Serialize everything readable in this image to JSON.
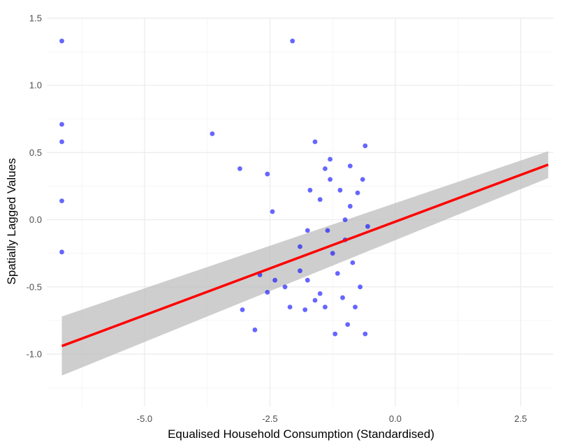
{
  "chart_data": {
    "type": "scatter",
    "title": "",
    "xlabel": "Equalised Household Consumption (Standardised)",
    "ylabel": "Spatially Lagged Values",
    "xlim": [
      -6.95,
      3.15
    ],
    "ylim": [
      -1.39,
      1.5
    ],
    "x_ticks": [
      -5.0,
      -2.5,
      0.0,
      2.5
    ],
    "x_tick_labels": [
      "-5.0",
      "-2.5",
      "0.0",
      "2.5"
    ],
    "y_ticks": [
      -1.0,
      -0.5,
      0.0,
      0.5,
      1.0,
      1.5
    ],
    "y_tick_labels": [
      "-1.0",
      "-0.5",
      "0.0",
      "0.5",
      "1.0",
      "1.5"
    ],
    "grid": true,
    "legend": "none",
    "colors": {
      "points": "#0000ff",
      "fit_line": "#ff0000",
      "confidence_band": "#bdbdbd",
      "grid_major": "#ebebeb",
      "grid_minor": "#f5f5f5",
      "tick_text": "#4d4d4d"
    },
    "fit_line": {
      "method": "linear",
      "x": [
        -6.65,
        3.05
      ],
      "y": [
        -0.94,
        0.41
      ],
      "ci_lower": [
        -1.16,
        0.31
      ],
      "ci_upper": [
        -0.72,
        0.51
      ]
    },
    "points": [
      [
        -6.65,
        1.33
      ],
      [
        -6.65,
        0.71
      ],
      [
        -6.65,
        0.58
      ],
      [
        -6.65,
        0.14
      ],
      [
        -6.65,
        -0.24
      ],
      [
        -3.65,
        0.64
      ],
      [
        -3.1,
        0.38
      ],
      [
        -3.05,
        -0.67
      ],
      [
        -2.8,
        -0.82
      ],
      [
        -2.7,
        -0.41
      ],
      [
        -2.55,
        0.34
      ],
      [
        -2.55,
        -0.54
      ],
      [
        -2.45,
        0.06
      ],
      [
        -2.4,
        -0.45
      ],
      [
        -2.2,
        -0.5
      ],
      [
        -2.1,
        -0.65
      ],
      [
        -2.05,
        1.33
      ],
      [
        -1.9,
        -0.2
      ],
      [
        -1.8,
        -0.67
      ],
      [
        -1.75,
        -0.45
      ],
      [
        -1.9,
        -0.38
      ],
      [
        -1.7,
        0.22
      ],
      [
        -1.75,
        -0.08
      ],
      [
        -1.6,
        0.58
      ],
      [
        -1.6,
        -0.6
      ],
      [
        -1.5,
        0.15
      ],
      [
        -1.5,
        -0.55
      ],
      [
        -1.4,
        0.38
      ],
      [
        -1.4,
        -0.65
      ],
      [
        -1.3,
        0.45
      ],
      [
        -1.35,
        -0.08
      ],
      [
        -1.25,
        -0.25
      ],
      [
        -1.2,
        -0.85
      ],
      [
        -1.15,
        -0.4
      ],
      [
        -1.3,
        0.3
      ],
      [
        -1.1,
        0.22
      ],
      [
        -1.05,
        -0.58
      ],
      [
        -1.0,
        -0.15
      ],
      [
        -1.0,
        0.0
      ],
      [
        -0.95,
        -0.78
      ],
      [
        -0.9,
        0.4
      ],
      [
        -0.9,
        0.1
      ],
      [
        -0.85,
        -0.32
      ],
      [
        -0.8,
        -0.65
      ],
      [
        -0.75,
        0.2
      ],
      [
        -0.7,
        -0.5
      ],
      [
        -0.65,
        0.3
      ],
      [
        -0.6,
        0.55
      ],
      [
        -0.6,
        -0.85
      ],
      [
        -0.55,
        -0.05
      ]
    ]
  }
}
